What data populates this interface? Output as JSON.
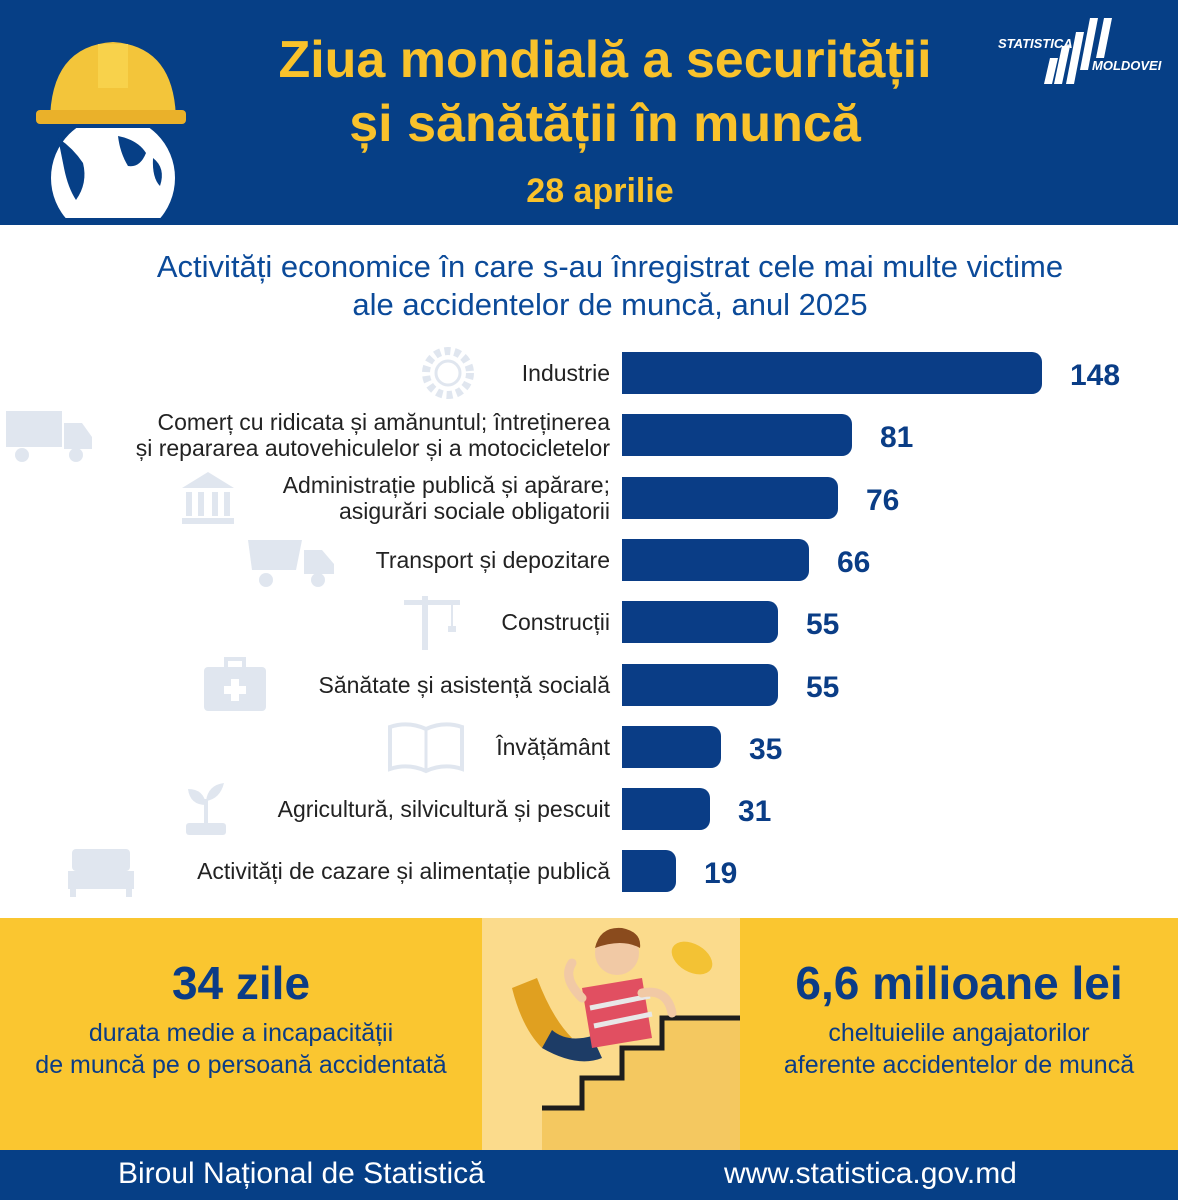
{
  "header": {
    "title_line1": "Ziua mondială a securității",
    "title_line2": "și sănătății în muncă",
    "date": "28 aprilie",
    "logo_text_top": "STATISTICA",
    "logo_text_bottom": "MOLDOVEI"
  },
  "subtitle_line1": "Activități economice în care s-au înregistrat cele mai multe victime",
  "subtitle_line2": "ale accidentelor de muncă, anul 2025",
  "chart_data": {
    "type": "bar",
    "orientation": "horizontal",
    "title": "Activități economice în care s-au înregistrat cele mai multe victime ale accidentelor de muncă, anul 2025",
    "categories": [
      [
        "Industrie"
      ],
      [
        "Comerț cu ridicata și amănuntul; întreținerea",
        "și repararea autovehiculelor și a motocicletelor"
      ],
      [
        "Administrație publică și apărare;",
        "asigurări sociale obligatorii"
      ],
      [
        "Transport și depozitare"
      ],
      [
        "Construcții"
      ],
      [
        "Sănătate și asistență socială"
      ],
      [
        "Învățământ"
      ],
      [
        "Agricultură, silvicultură și pescuit"
      ],
      [
        "Activități de cazare și alimentație publică"
      ]
    ],
    "values": [
      148,
      81,
      76,
      66,
      55,
      55,
      35,
      31,
      19
    ],
    "value_labels": [
      "148",
      "81",
      "76",
      "66",
      "55",
      "55",
      "35",
      "31",
      "19"
    ],
    "bar_color": "#0a3d86",
    "icons": [
      "gear-globe-icon",
      "truck-icon",
      "bank-icon",
      "dump-truck-icon",
      "crane-icon",
      "medical-kit-icon",
      "book-icon",
      "plant-icon",
      "bed-icon"
    ]
  },
  "stats": {
    "left_big": "34 zile",
    "left_small1": "durata medie a incapacității",
    "left_small2": "de muncă pe o persoană accidentată",
    "right_big": "6,6 milioane lei",
    "right_small1": "cheltuielile angajatorilor",
    "right_small2": "aferente accidentelor de muncă"
  },
  "footer": {
    "left": "Biroul Național de Statistică",
    "right": "www.statistica.gov.md"
  },
  "colors": {
    "navy": "#063f86",
    "yellow": "#f9c22b",
    "bar": "#0a3d86"
  }
}
